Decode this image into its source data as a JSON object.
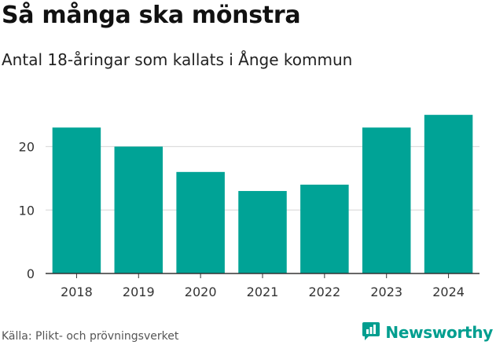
{
  "header": {
    "title": "Så många ska mönstra",
    "subtitle": "Antal 18-åringar som kallats i Ånge kommun"
  },
  "footer": {
    "source": "Källa: Plikt- och prövningsverket",
    "brand": "Newsworthy",
    "brand_icon": "bar-chart-speech-bubble-icon"
  },
  "colors": {
    "bar": "#00a396",
    "grid": "#dddddd",
    "axis": "#333333",
    "brand": "#009e8f"
  },
  "chart_data": {
    "type": "bar",
    "title": "Så många ska mönstra",
    "subtitle": "Antal 18-åringar som kallats i Ånge kommun",
    "categories": [
      "2018",
      "2019",
      "2020",
      "2021",
      "2022",
      "2023",
      "2024"
    ],
    "values": [
      23,
      20,
      16,
      13,
      14,
      23,
      25
    ],
    "xlabel": "",
    "ylabel": "",
    "ylim": [
      0,
      27
    ],
    "yticks": [
      0,
      10,
      20
    ],
    "grid": true,
    "legend": "none"
  }
}
